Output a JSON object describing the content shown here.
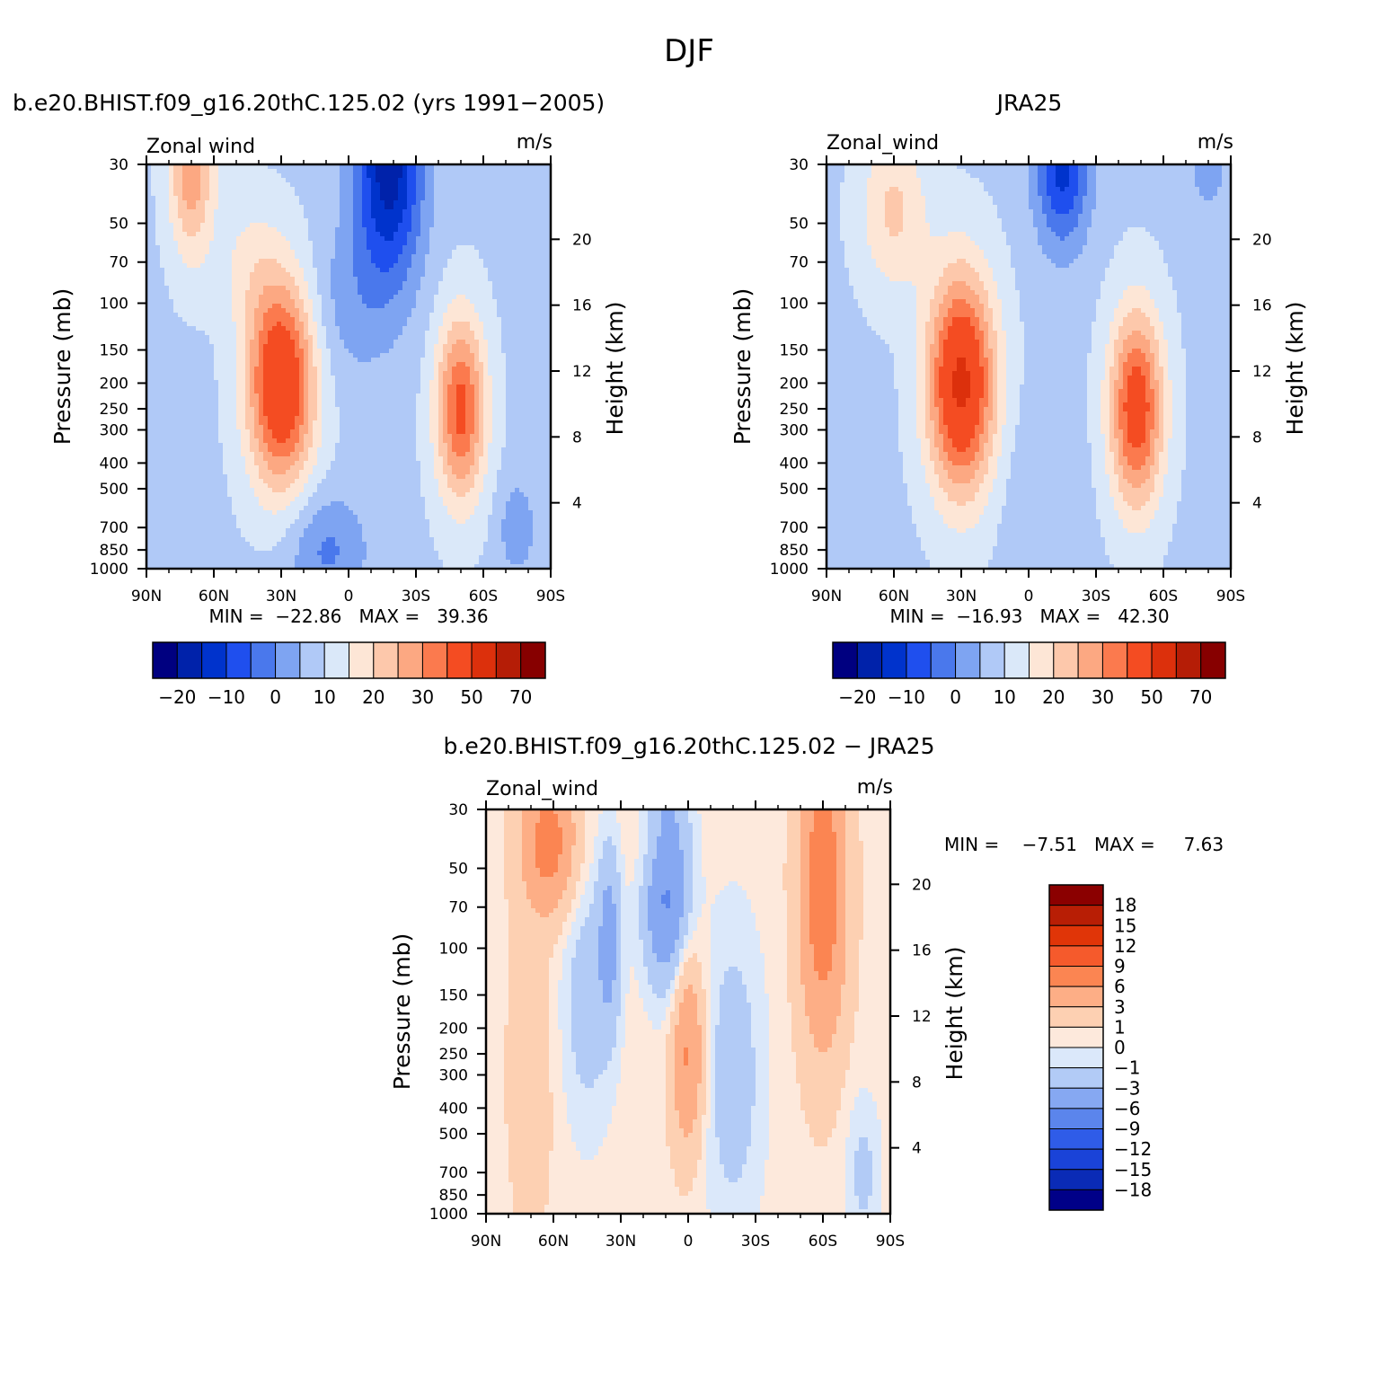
{
  "page": {
    "title": "DJF"
  },
  "colorbar_main": {
    "colors": [
      "#000080",
      "#0022aa",
      "#0033cc",
      "#1f4fee",
      "#4a78ec",
      "#7ea4f2",
      "#b0c9f7",
      "#dae8f9",
      "#fde6d6",
      "#fdc8ab",
      "#fca882",
      "#fb7a4e",
      "#f44c22",
      "#dc300c",
      "#b51d06",
      "#870000"
    ],
    "tick_labels": [
      "−20",
      "−10",
      "0",
      "10",
      "20",
      "30",
      "50",
      "70"
    ]
  },
  "colorbar_diff": {
    "colors": [
      "#8b0000",
      "#b81e05",
      "#e03508",
      "#f55a2c",
      "#fb8552",
      "#fdae86",
      "#fdd0b2",
      "#fde9dc",
      "#dbe8fa",
      "#b2cbf6",
      "#86a8f2",
      "#5b85ec",
      "#2f5ce8",
      "#1a43d8",
      "#0a2bb6",
      "#000088"
    ],
    "labels": [
      "18",
      "15",
      "12",
      "9",
      "6",
      "3",
      "1",
      "0",
      "−1",
      "−3",
      "−6",
      "−9",
      "−12",
      "−15",
      "−18"
    ]
  },
  "chart_data": [
    {
      "type": "heatmap",
      "title": "b.e20.BHIST.f09_g16.20thC.125.02 (yrs 1991−2005)",
      "left_label": "Zonal wind",
      "right_label": "m/s",
      "ylabel": "Pressure (mb)",
      "y2label": "Height (km)",
      "x_ticks": [
        "90N",
        "60N",
        "30N",
        "0",
        "30S",
        "60S",
        "90S"
      ],
      "y_ticks": [
        "30",
        "50",
        "70",
        "100",
        "150",
        "200",
        "250",
        "300",
        "400",
        "500",
        "700",
        "850",
        "1000"
      ],
      "y2_ticks": [
        "20",
        "16",
        "12",
        "8",
        "4"
      ],
      "min_max_label": "MIN =  −22.86   MAX =   39.36",
      "stats": {
        "min": -22.86,
        "max": 39.36
      },
      "features": [
        {
          "lat": 30,
          "pressure": 200,
          "value": 39.36,
          "kind": "max"
        },
        {
          "lat": -50,
          "pressure": 250,
          "value": 30,
          "kind": "max"
        },
        {
          "lat": -18,
          "pressure": 30,
          "value": -22.86,
          "kind": "min"
        },
        {
          "lat": 70,
          "pressure": 30,
          "value": 20,
          "kind": "max"
        }
      ]
    },
    {
      "type": "heatmap",
      "title": "JRA25",
      "left_label": "Zonal_wind",
      "right_label": "m/s",
      "ylabel": "Pressure (mb)",
      "y2label": "Height (km)",
      "x_ticks": [
        "90N",
        "60N",
        "30N",
        "0",
        "30S",
        "60S",
        "90S"
      ],
      "y_ticks": [
        "30",
        "50",
        "70",
        "100",
        "150",
        "200",
        "250",
        "300",
        "400",
        "500",
        "700",
        "850",
        "1000"
      ],
      "y2_ticks": [
        "20",
        "16",
        "12",
        "8",
        "4"
      ],
      "min_max_label": "MIN =  −16.93   MAX =   42.30",
      "stats": {
        "min": -16.93,
        "max": 42.3
      },
      "features": [
        {
          "lat": 30,
          "pressure": 200,
          "value": 42.3,
          "kind": "max"
        },
        {
          "lat": -48,
          "pressure": 250,
          "value": 35,
          "kind": "max"
        },
        {
          "lat": -15,
          "pressure": 30,
          "value": -16.93,
          "kind": "min"
        }
      ]
    },
    {
      "type": "heatmap",
      "title": "b.e20.BHIST.f09_g16.20thC.125.02 − JRA25",
      "left_label": "Zonal_wind",
      "right_label": "m/s",
      "ylabel": "Pressure (mb)",
      "y2label": "Height (km)",
      "x_ticks": [
        "90N",
        "60N",
        "30N",
        "0",
        "30S",
        "60S",
        "90S"
      ],
      "y_ticks": [
        "30",
        "50",
        "70",
        "100",
        "150",
        "200",
        "250",
        "300",
        "400",
        "500",
        "700",
        "850",
        "1000"
      ],
      "y2_ticks": [
        "20",
        "16",
        "12",
        "8",
        "4"
      ],
      "min_max_label": "MIN =    −7.51   MAX =     7.63",
      "stats": {
        "min": -7.51,
        "max": 7.63
      },
      "features": [
        {
          "lat": 62,
          "pressure": 40,
          "value": 7,
          "kind": "max"
        },
        {
          "lat": 0,
          "pressure": 250,
          "value": 5,
          "kind": "max"
        },
        {
          "lat": -60,
          "pressure": 60,
          "value": 7.63,
          "kind": "max"
        },
        {
          "lat": 10,
          "pressure": 50,
          "value": -7.51,
          "kind": "min"
        }
      ]
    }
  ]
}
